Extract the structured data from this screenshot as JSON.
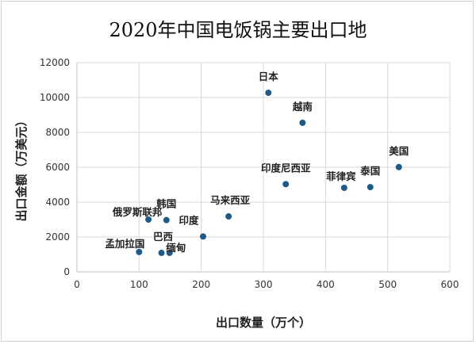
{
  "chart_data": {
    "type": "scatter",
    "title": "2020年中国电饭锅主要出口地",
    "xlabel": "出口数量（万个）",
    "ylabel": "出口金额（万美元）",
    "xlim": [
      0,
      600
    ],
    "ylim": [
      0,
      12000
    ],
    "xticks": [
      0,
      100,
      200,
      300,
      400,
      500,
      600
    ],
    "yticks": [
      0,
      2000,
      4000,
      6000,
      8000,
      10000,
      12000
    ],
    "grid": true,
    "marker_color": "#1f5a87",
    "points": [
      {
        "label": "日本",
        "x": 308,
        "y": 10270
      },
      {
        "label": "越南",
        "x": 363,
        "y": 8550
      },
      {
        "label": "美国",
        "x": 518,
        "y": 6010
      },
      {
        "label": "印度尼西亚",
        "x": 336,
        "y": 5030
      },
      {
        "label": "菲律宾",
        "x": 430,
        "y": 4820
      },
      {
        "label": "泰国",
        "x": 472,
        "y": 4860
      },
      {
        "label": "马来西亚",
        "x": 244,
        "y": 3180
      },
      {
        "label": "韩国",
        "x": 144,
        "y": 2970
      },
      {
        "label": "俄罗斯联邦",
        "x": 115,
        "y": 3000
      },
      {
        "label": "印度",
        "x": 203,
        "y": 2030
      },
      {
        "label": "孟加拉国",
        "x": 100,
        "y": 1140
      },
      {
        "label": "巴西",
        "x": 136,
        "y": 1090
      },
      {
        "label": "缅甸",
        "x": 149,
        "y": 1090
      }
    ]
  }
}
